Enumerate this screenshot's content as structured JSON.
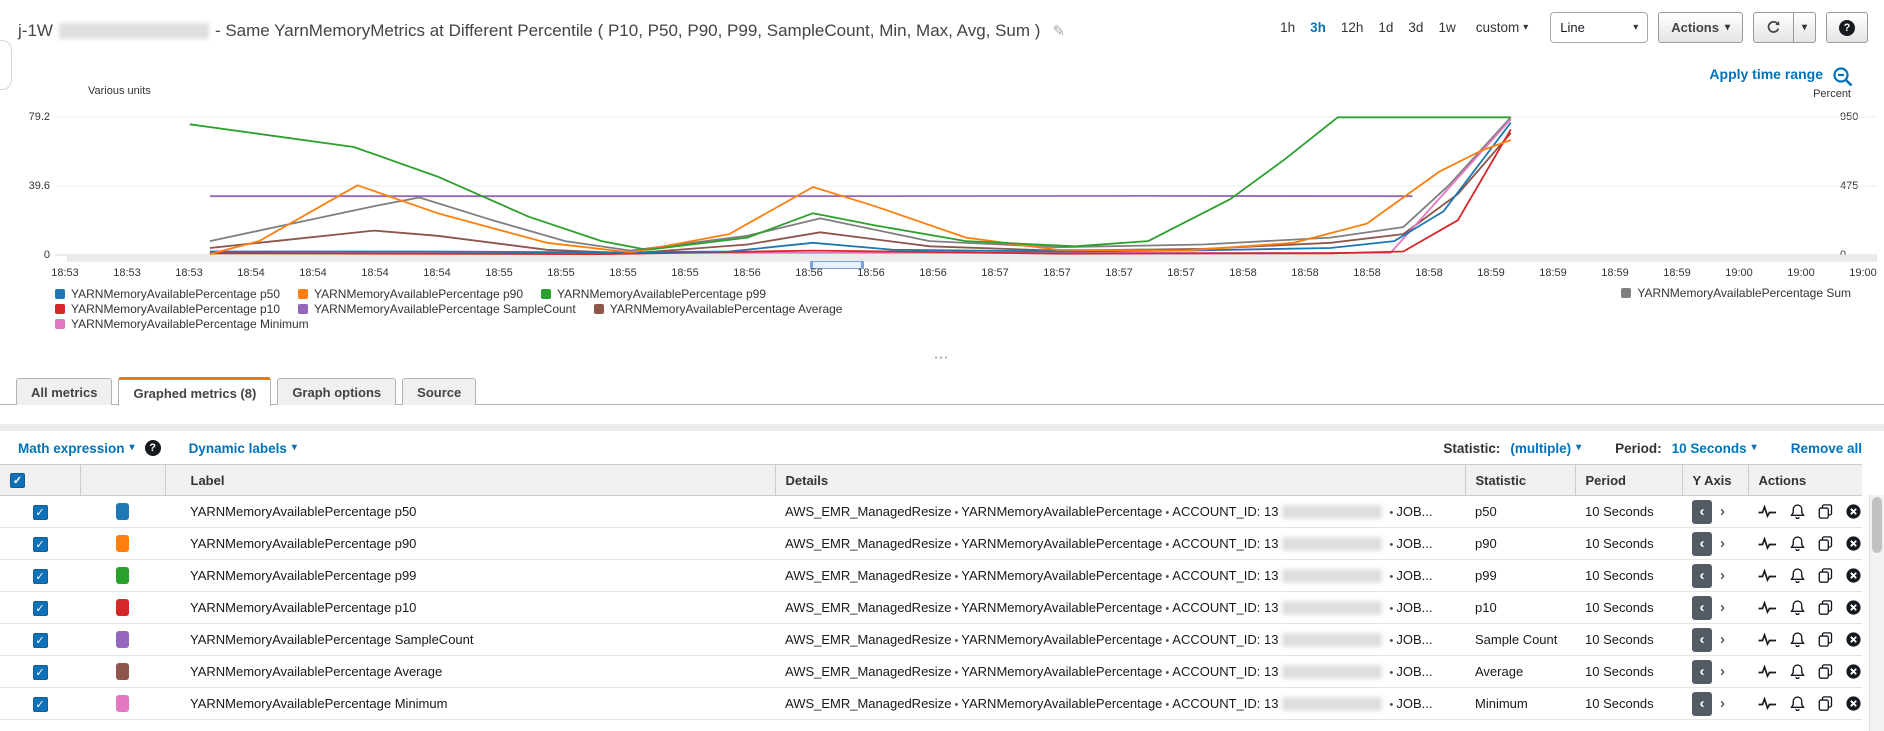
{
  "header": {
    "title_prefix": "j-1W",
    "title_rest": "- Same YarnMemoryMetrics at Different Percentile ( P10, P50, P90, P99, SampleCount, Min, Max, Avg, Sum )",
    "time_ranges": [
      "1h",
      "3h",
      "12h",
      "1d",
      "3d",
      "1w"
    ],
    "selected_time_range": "3h",
    "custom_label": "custom",
    "chart_type_value": "Line",
    "actions_label": "Actions"
  },
  "chart": {
    "left_axis_label": "Various units",
    "right_axis_label": "Percent",
    "apply_time_range_label": "Apply time range",
    "left_ticks": [
      "79.2",
      "39.6",
      "0"
    ],
    "right_ticks": [
      "950",
      "475",
      "0"
    ],
    "x_labels": [
      "18:53",
      "18:53",
      "18:53",
      "18:54",
      "18:54",
      "18:54",
      "18:54",
      "18:55",
      "18:55",
      "18:55",
      "18:55",
      "18:56",
      "18:56",
      "18:56",
      "18:56",
      "18:57",
      "18:57",
      "18:57",
      "18:57",
      "18:58",
      "18:58",
      "18:58",
      "18:58",
      "18:59",
      "18:59",
      "18:59",
      "18:59",
      "19:00",
      "19:00",
      "19:00"
    ],
    "legend_rows": [
      [
        {
          "name": "YARNMemoryAvailablePercentage p50",
          "color": "#1f77b4"
        },
        {
          "name": "YARNMemoryAvailablePercentage p90",
          "color": "#ff7f0e"
        },
        {
          "name": "YARNMemoryAvailablePercentage p99",
          "color": "#2ca02c"
        }
      ],
      [
        {
          "name": "YARNMemoryAvailablePercentage p10",
          "color": "#d62728"
        },
        {
          "name": "YARNMemoryAvailablePercentage SampleCount",
          "color": "#9467bd"
        },
        {
          "name": "YARNMemoryAvailablePercentage Average",
          "color": "#8c564b"
        }
      ],
      [
        {
          "name": "YARNMemoryAvailablePercentage Minimum",
          "color": "#e377c2"
        }
      ]
    ],
    "legend_right": {
      "name": "YARNMemoryAvailablePercentage Sum",
      "color": "#7f7f7f"
    }
  },
  "chart_data": {
    "type": "line",
    "title": "Same YarnMemoryMetrics at Different Percentile",
    "x_axis": {
      "start": "18:53",
      "end": "19:00",
      "tick_labels_every": "15 seconds"
    },
    "y_left": {
      "label": "Various units",
      "ticks": [
        79.2,
        39.6,
        0
      ],
      "max": 79.2,
      "unit": "Percent"
    },
    "y_right": {
      "label": "Percent",
      "ticks": [
        950,
        475,
        0
      ],
      "max": 950,
      "unit": "Count"
    },
    "grid": true,
    "legend_position": "bottom",
    "points_format": "[fraction_of_x_axis_width, value]",
    "series": [
      {
        "name": "YARNMemoryAvailablePercentage Sum",
        "color": "#7f7f7f",
        "axis": "left",
        "points": [
          [
            0.085,
            8
          ],
          [
            0.13,
            18
          ],
          [
            0.175,
            28
          ],
          [
            0.2,
            33
          ],
          [
            0.24,
            20
          ],
          [
            0.28,
            8
          ],
          [
            0.316,
            2.5
          ],
          [
            0.38,
            11
          ],
          [
            0.42,
            21
          ],
          [
            0.48,
            8
          ],
          [
            0.55,
            4.5
          ],
          [
            0.63,
            6
          ],
          [
            0.7,
            10
          ],
          [
            0.74,
            16
          ],
          [
            0.765,
            40
          ],
          [
            0.799,
            79
          ]
        ]
      },
      {
        "name": "YARNMemoryAvailablePercentage SampleCount",
        "color": "#9467bd",
        "axis": "right",
        "points": [
          [
            0.085,
            405
          ],
          [
            0.4,
            405
          ],
          [
            0.6,
            407
          ],
          [
            0.745,
            405
          ]
        ]
      },
      {
        "name": "YARNMemoryAvailablePercentage Average",
        "color": "#8c564b",
        "axis": "left",
        "points": [
          [
            0.085,
            4
          ],
          [
            0.13,
            9
          ],
          [
            0.175,
            14
          ],
          [
            0.21,
            11
          ],
          [
            0.27,
            3
          ],
          [
            0.316,
            1
          ],
          [
            0.38,
            6
          ],
          [
            0.42,
            13
          ],
          [
            0.48,
            5
          ],
          [
            0.55,
            2.5
          ],
          [
            0.63,
            3.5
          ],
          [
            0.7,
            7
          ],
          [
            0.74,
            12
          ],
          [
            0.77,
            35
          ],
          [
            0.799,
            70
          ]
        ]
      },
      {
        "name": "YARNMemoryAvailablePercentage Minimum",
        "color": "#e377c2",
        "axis": "left",
        "points": [
          [
            0.085,
            1.2
          ],
          [
            0.4,
            1.2
          ],
          [
            0.733,
            1.2
          ],
          [
            0.799,
            78
          ]
        ]
      },
      {
        "name": "YARNMemoryAvailablePercentage p10",
        "color": "#d62728",
        "axis": "left",
        "points": [
          [
            0.085,
            1
          ],
          [
            0.3,
            0.5
          ],
          [
            0.416,
            2.5
          ],
          [
            0.55,
            0.8
          ],
          [
            0.7,
            1
          ],
          [
            0.74,
            2
          ],
          [
            0.77,
            20
          ],
          [
            0.799,
            72
          ]
        ]
      },
      {
        "name": "YARNMemoryAvailablePercentage p50",
        "color": "#1f77b4",
        "axis": "left",
        "points": [
          [
            0.085,
            2
          ],
          [
            0.2,
            2
          ],
          [
            0.3,
            1.5
          ],
          [
            0.37,
            2
          ],
          [
            0.416,
            7
          ],
          [
            0.46,
            3
          ],
          [
            0.55,
            2
          ],
          [
            0.62,
            2.5
          ],
          [
            0.7,
            4
          ],
          [
            0.735,
            8
          ],
          [
            0.762,
            25
          ],
          [
            0.799,
            76
          ]
        ]
      },
      {
        "name": "YARNMemoryAvailablePercentage p90",
        "color": "#ff7f0e",
        "axis": "left",
        "points": [
          [
            0.085,
            0.5
          ],
          [
            0.112,
            8
          ],
          [
            0.166,
            40
          ],
          [
            0.21,
            24
          ],
          [
            0.27,
            7
          ],
          [
            0.316,
            1.5
          ],
          [
            0.37,
            12
          ],
          [
            0.416,
            39
          ],
          [
            0.45,
            28
          ],
          [
            0.5,
            10
          ],
          [
            0.55,
            3
          ],
          [
            0.62,
            2.5
          ],
          [
            0.68,
            7
          ],
          [
            0.72,
            18
          ],
          [
            0.76,
            48
          ],
          [
            0.783,
            60
          ],
          [
            0.799,
            66
          ]
        ]
      },
      {
        "name": "YARNMemoryAvailablePercentage p99",
        "color": "#2ca02c",
        "axis": "left",
        "points": [
          [
            0.074,
            75
          ],
          [
            0.164,
            62
          ],
          [
            0.21,
            45
          ],
          [
            0.26,
            22
          ],
          [
            0.3,
            8
          ],
          [
            0.325,
            3
          ],
          [
            0.38,
            10
          ],
          [
            0.416,
            24
          ],
          [
            0.45,
            17
          ],
          [
            0.5,
            8
          ],
          [
            0.56,
            5
          ],
          [
            0.6,
            8
          ],
          [
            0.645,
            32
          ],
          [
            0.675,
            55
          ],
          [
            0.704,
            79
          ],
          [
            0.799,
            79
          ]
        ]
      }
    ]
  },
  "tabs": [
    {
      "label": "All metrics",
      "active": false
    },
    {
      "label": "Graphed metrics (8)",
      "active": true
    },
    {
      "label": "Graph options",
      "active": false
    },
    {
      "label": "Source",
      "active": false
    }
  ],
  "toolbar": {
    "math_expression_label": "Math expression",
    "dynamic_labels_label": "Dynamic labels",
    "statistic_label": "Statistic:",
    "statistic_value": "(multiple)",
    "period_label": "Period:",
    "period_value": "10 Seconds",
    "remove_all_label": "Remove all"
  },
  "table": {
    "columns": {
      "label": "Label",
      "details": "Details",
      "statistic": "Statistic",
      "period": "Period",
      "y_axis": "Y Axis",
      "actions": "Actions"
    },
    "details_parts": [
      "AWS_EMR_ManagedResize",
      "YARNMemoryAvailablePercentage",
      "ACCOUNT_ID: 13"
    ],
    "details_truncated": "JOB...",
    "rows": [
      {
        "label": "YARNMemoryAvailablePercentage p50",
        "color": "#1f77b4",
        "statistic": "p50",
        "period": "10 Seconds"
      },
      {
        "label": "YARNMemoryAvailablePercentage p90",
        "color": "#ff7f0e",
        "statistic": "p90",
        "period": "10 Seconds"
      },
      {
        "label": "YARNMemoryAvailablePercentage p99",
        "color": "#2ca02c",
        "statistic": "p99",
        "period": "10 Seconds"
      },
      {
        "label": "YARNMemoryAvailablePercentage p10",
        "color": "#d62728",
        "statistic": "p10",
        "period": "10 Seconds"
      },
      {
        "label": "YARNMemoryAvailablePercentage SampleCount",
        "color": "#9467bd",
        "statistic": "Sample Count",
        "period": "10 Seconds"
      },
      {
        "label": "YARNMemoryAvailablePercentage Average",
        "color": "#8c564b",
        "statistic": "Average",
        "period": "10 Seconds"
      },
      {
        "label": "YARNMemoryAvailablePercentage Minimum",
        "color": "#e377c2",
        "statistic": "Minimum",
        "period": "10 Seconds"
      }
    ]
  },
  "icons": {
    "edit": "✎",
    "caret": "▾",
    "help": "?",
    "chevron_left": "‹",
    "chevron_right": "›",
    "bullet": "•",
    "resize_handle": "⋯",
    "check": "✓"
  },
  "colors": {
    "accent_blue": "#0073bb",
    "tab_active_border": "#e47911",
    "grid": "#e8e8e8"
  }
}
